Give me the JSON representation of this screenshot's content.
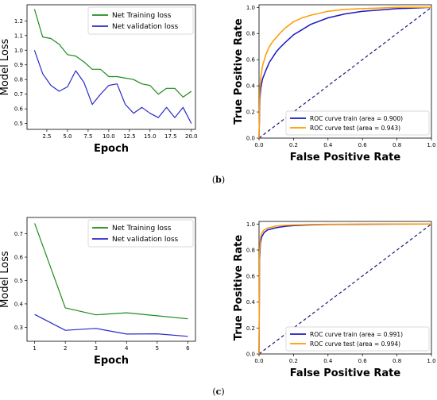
{
  "captions": [
    {
      "open": "(",
      "letter": "b",
      "close": ")"
    },
    {
      "open": "(",
      "letter": "c",
      "close": ")"
    }
  ],
  "chart_data": [
    {
      "id": "b-loss",
      "type": "line",
      "xlabel": "Epoch",
      "ylabel": "Model Loss",
      "xlim": [
        0.1,
        20.5
      ],
      "ylim": [
        0.46,
        1.31
      ],
      "xticks": [
        2.5,
        5.0,
        7.5,
        10.0,
        12.5,
        15.0,
        17.5,
        20.0
      ],
      "xtick_labels": [
        "2.5",
        "5.0",
        "7.5",
        "10.0",
        "12.5",
        "15.0",
        "17.5",
        "20.0"
      ],
      "yticks": [
        0.5,
        0.6,
        0.7,
        0.8,
        0.9,
        1.0,
        1.1,
        1.2
      ],
      "ytick_labels": [
        "0.5",
        "0.6",
        "0.7",
        "0.8",
        "0.9",
        "1.0",
        "1.1",
        "1.2"
      ],
      "legend_position": "top-right",
      "series": [
        {
          "name": "Net Training loss",
          "color": "#1e8c1e",
          "x": [
            1,
            2,
            3,
            4,
            5,
            6,
            7,
            8,
            9,
            10,
            11,
            12,
            13,
            14,
            15,
            16,
            17,
            18,
            19,
            20
          ],
          "y": [
            1.28,
            1.09,
            1.08,
            1.04,
            0.97,
            0.96,
            0.92,
            0.87,
            0.87,
            0.82,
            0.82,
            0.81,
            0.8,
            0.77,
            0.76,
            0.7,
            0.74,
            0.74,
            0.68,
            0.72
          ]
        },
        {
          "name": "Net validation loss",
          "color": "#2a2ac8",
          "x": [
            1,
            2,
            3,
            4,
            5,
            6,
            7,
            8,
            9,
            10,
            11,
            12,
            13,
            14,
            15,
            16,
            17,
            18,
            19,
            20
          ],
          "y": [
            1.0,
            0.84,
            0.76,
            0.72,
            0.75,
            0.86,
            0.78,
            0.63,
            0.7,
            0.76,
            0.77,
            0.63,
            0.57,
            0.61,
            0.57,
            0.54,
            0.61,
            0.54,
            0.61,
            0.5
          ]
        }
      ]
    },
    {
      "id": "b-roc",
      "type": "line",
      "xlabel": "False Positive Rate",
      "ylabel": "True Positive Rate",
      "xlim": [
        0.0,
        1.0
      ],
      "ylim": [
        0.0,
        1.02
      ],
      "xticks": [
        0.0,
        0.2,
        0.4,
        0.6,
        0.8,
        1.0
      ],
      "xtick_labels": [
        "0.0",
        "0.2",
        "0.4",
        "0.6",
        "0.8",
        "1.0"
      ],
      "yticks": [
        0.0,
        0.2,
        0.4,
        0.6,
        0.8,
        1.0
      ],
      "ytick_labels": [
        "0.0",
        "0.2",
        "0.4",
        "0.6",
        "0.8",
        "1.0"
      ],
      "legend_position": "lower-right",
      "diagonal": true,
      "series": [
        {
          "name": "ROC curve train (area = 0.900)",
          "color": "#1a1abf",
          "x": [
            0,
            0.005,
            0.01,
            0.02,
            0.04,
            0.06,
            0.08,
            0.1,
            0.12,
            0.15,
            0.2,
            0.25,
            0.3,
            0.4,
            0.5,
            0.6,
            0.7,
            0.8,
            0.9,
            1.0
          ],
          "y": [
            0,
            0.3,
            0.38,
            0.45,
            0.52,
            0.58,
            0.62,
            0.66,
            0.69,
            0.73,
            0.79,
            0.83,
            0.87,
            0.92,
            0.95,
            0.97,
            0.98,
            0.99,
            0.995,
            1.0
          ]
        },
        {
          "name": "ROC curve test (area = 0.943)",
          "color": "#ff9900",
          "x": [
            0,
            0.005,
            0.01,
            0.02,
            0.04,
            0.06,
            0.08,
            0.1,
            0.12,
            0.15,
            0.2,
            0.25,
            0.3,
            0.4,
            0.5,
            0.6,
            0.7,
            0.8,
            0.9,
            1.0
          ],
          "y": [
            0,
            0.38,
            0.46,
            0.55,
            0.64,
            0.7,
            0.74,
            0.77,
            0.8,
            0.84,
            0.89,
            0.92,
            0.94,
            0.97,
            0.985,
            0.99,
            0.995,
            1.0,
            1.0,
            1.0
          ]
        }
      ]
    },
    {
      "id": "c-loss",
      "type": "line",
      "xlabel": "Epoch",
      "ylabel": "Model Loss",
      "xlim": [
        0.75,
        6.25
      ],
      "ylim": [
        0.24,
        0.77
      ],
      "xticks": [
        1,
        2,
        3,
        4,
        5,
        6
      ],
      "xtick_labels": [
        "1",
        "2",
        "3",
        "4",
        "5",
        "6"
      ],
      "yticks": [
        0.3,
        0.4,
        0.5,
        0.6,
        0.7
      ],
      "ytick_labels": [
        "0.3",
        "0.4",
        "0.5",
        "0.6",
        "0.7"
      ],
      "legend_position": "top-right",
      "series": [
        {
          "name": "Net Training loss",
          "color": "#1e8c1e",
          "x": [
            1,
            2,
            3,
            4,
            5,
            6
          ],
          "y": [
            0.745,
            0.383,
            0.353,
            0.362,
            0.349,
            0.336
          ]
        },
        {
          "name": "Net validation loss",
          "color": "#2a2ac8",
          "x": [
            1,
            2,
            3,
            4,
            5,
            6
          ],
          "y": [
            0.355,
            0.287,
            0.295,
            0.271,
            0.272,
            0.261
          ]
        }
      ]
    },
    {
      "id": "c-roc",
      "type": "line",
      "xlabel": "False Positive Rate",
      "ylabel": "True Positive Rate",
      "xlim": [
        0.0,
        1.0
      ],
      "ylim": [
        0.0,
        1.02
      ],
      "xticks": [
        0.0,
        0.2,
        0.4,
        0.6,
        0.8,
        1.0
      ],
      "xtick_labels": [
        "0.0",
        "0.2",
        "0.4",
        "0.6",
        "0.8",
        "1.0"
      ],
      "yticks": [
        0.0,
        0.2,
        0.4,
        0.6,
        0.8,
        1.0
      ],
      "ytick_labels": [
        "0.0",
        "0.2",
        "0.4",
        "0.6",
        "0.8",
        "1.0"
      ],
      "legend_position": "lower-right",
      "diagonal": true,
      "series": [
        {
          "name": "ROC curve train (area = 0.991)",
          "color": "#1a1abf",
          "x": [
            0,
            0.003,
            0.008,
            0.015,
            0.03,
            0.05,
            0.08,
            0.1,
            0.15,
            0.2,
            0.3,
            0.4,
            0.6,
            0.8,
            1.0
          ],
          "y": [
            0,
            0.72,
            0.85,
            0.9,
            0.935,
            0.955,
            0.965,
            0.972,
            0.982,
            0.988,
            0.993,
            0.996,
            0.998,
            0.999,
            1.0
          ]
        },
        {
          "name": "ROC curve test (area = 0.994)",
          "color": "#ff9900",
          "x": [
            0,
            0.003,
            0.008,
            0.015,
            0.03,
            0.05,
            0.08,
            0.1,
            0.15,
            0.2,
            0.3,
            0.4,
            0.6,
            0.8,
            1.0
          ],
          "y": [
            0,
            0.78,
            0.89,
            0.93,
            0.955,
            0.97,
            0.978,
            0.985,
            0.99,
            0.993,
            0.996,
            0.998,
            0.999,
            1.0,
            1.0
          ]
        }
      ]
    }
  ]
}
